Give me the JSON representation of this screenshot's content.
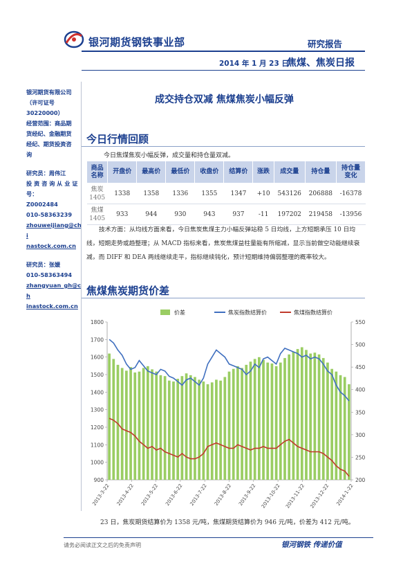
{
  "header": {
    "company": "银河期货钢铁事业部",
    "report_type": "研究报告",
    "date": "2014 年 1 月 23 日",
    "daily_title": "焦煤、焦炭日报"
  },
  "sidebar": {
    "company_lines": [
      "银河期货有限公司",
      "（许可证号",
      "30220000）",
      "经营范围：商品期",
      "货经纪、金融期货",
      "经纪、期货投资咨",
      "询"
    ],
    "researcher1_lines": [
      "研究员：周伟江",
      "投 资 咨 询 从 业 证",
      "号：",
      "Z0002484",
      "010-58363239"
    ],
    "researcher1_email": [
      "zhouweijiang@chi",
      "nastock.com.cn"
    ],
    "researcher2_lines": [
      "研究员：张媛",
      "010-58363494"
    ],
    "researcher2_email": [
      "zhangyuan_gh@ch",
      "inastock.com.cn"
    ]
  },
  "main_title": "成交持仓双减 焦煤焦炭小幅反弹",
  "section1": {
    "title": "今日行情回顾",
    "intro": "今日焦煤焦炭小幅反弹，成交量和持仓量双减。",
    "headers": [
      "商品\n名称",
      "开盘价",
      "最高价",
      "最低价",
      "收盘价",
      "结算价",
      "涨跌",
      "成交量",
      "持仓量",
      "持仓量\n变化"
    ],
    "rows": [
      [
        "焦炭\n1405",
        "1338",
        "1358",
        "1336",
        "1355",
        "1347",
        "+10",
        "543126",
        "206888",
        "-16378"
      ],
      [
        "焦煤\n1405",
        "933",
        "944",
        "930",
        "943",
        "937",
        "-11",
        "197202",
        "219458",
        "-13956"
      ]
    ],
    "tech_text": "技术方面：从均线方面来看，今日焦炭焦煤主力小幅反弹站稳 5 日均线，上方短期承压 10 日均线，短期走势或趋整理；从 MACD 指标来看，焦炭焦煤益柱量能有所缩减，显示当前做空动能继续衰减，而 DIFF 和 DEA 两线继续走平，指标继续钝化，预计短期维持偏弱整理的概率较大。"
  },
  "section2": {
    "title": "焦煤焦炭期货价差"
  },
  "chart_data": {
    "type": "line",
    "series": [
      {
        "name": "价差",
        "kind": "bar",
        "axis": "right",
        "color": "#9acd63",
        "values": [
          480,
          468,
          455,
          448,
          442,
          450,
          438,
          440,
          448,
          452,
          445,
          440,
          432,
          430,
          420,
          418,
          424,
          430,
          436,
          432,
          428,
          422,
          418,
          412,
          416,
          422,
          420,
          428,
          440,
          446,
          452,
          448,
          455,
          462,
          468,
          472,
          466,
          460,
          458,
          452,
          460,
          470,
          478,
          484,
          490,
          494,
          488,
          480,
          482,
          478,
          470,
          460,
          446,
          440,
          432,
          428,
          412
        ]
      },
      {
        "name": "焦炭指数结算价",
        "kind": "line",
        "axis": "left",
        "color": "#3f6fbf",
        "values": [
          1700,
          1680,
          1640,
          1610,
          1560,
          1530,
          1540,
          1580,
          1550,
          1520,
          1510,
          1500,
          1530,
          1520,
          1490,
          1480,
          1460,
          1440,
          1470,
          1480,
          1460,
          1440,
          1480,
          1560,
          1600,
          1640,
          1620,
          1600,
          1560,
          1550,
          1540,
          1530,
          1500,
          1520,
          1560,
          1540,
          1590,
          1600,
          1580,
          1560,
          1620,
          1650,
          1640,
          1630,
          1620,
          1600,
          1610,
          1590,
          1600,
          1590,
          1560,
          1520,
          1500,
          1440,
          1400,
          1380,
          1350
        ]
      },
      {
        "name": "焦煤指数结算价",
        "kind": "line",
        "axis": "left",
        "color": "#c0392b",
        "values": [
          1250,
          1240,
          1220,
          1190,
          1180,
          1170,
          1150,
          1120,
          1100,
          1080,
          1090,
          1070,
          1080,
          1060,
          1050,
          1040,
          1030,
          1050,
          1030,
          1020,
          1020,
          1030,
          1050,
          1090,
          1100,
          1110,
          1100,
          1090,
          1080,
          1080,
          1100,
          1090,
          1080,
          1070,
          1080,
          1080,
          1090,
          1080,
          1080,
          1080,
          1100,
          1120,
          1130,
          1110,
          1090,
          1080,
          1070,
          1060,
          1060,
          1060,
          1050,
          1030,
          1010,
          980,
          960,
          950,
          920
        ]
      }
    ],
    "x_ticks": [
      "2013-3-22",
      "2013-4-22",
      "2013-5-22",
      "2013-6-22",
      "2013-7-22",
      "2013-8-22",
      "2013-9-22",
      "2013-10-22",
      "2013-11-22",
      "2013-12-22",
      "2014-1-22"
    ],
    "y_left": {
      "min": 900,
      "max": 1800,
      "ticks": [
        900,
        1000,
        1100,
        1200,
        1300,
        1400,
        1500,
        1600,
        1700,
        1800
      ]
    },
    "y_right": {
      "min": 200,
      "max": 550,
      "ticks": [
        200,
        250,
        300,
        350,
        400,
        450,
        500,
        550
      ]
    },
    "legend_position": "top"
  },
  "closing": "23 日，焦炭期货结算价为 1358 元/吨，焦煤期货结算价为 946 元/吨，价差为 412 元/吨。",
  "footer": {
    "disclaimer": "请务必阅读正文之后的免责声明",
    "slogan": "银河钢铁  传递价值"
  },
  "colors": {
    "brand_blue": "#1b3f8f",
    "logo_red": "#d0312d",
    "table_header": "#c9d4ea"
  }
}
